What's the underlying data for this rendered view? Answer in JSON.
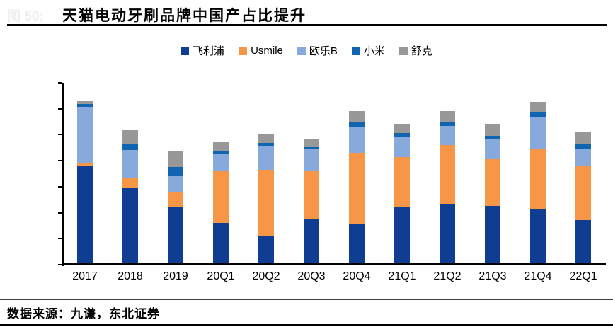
{
  "header": {
    "figure_label": "图 50:",
    "title": "天猫电动牙刷品牌中国产占比提升"
  },
  "chart_data": {
    "type": "bar",
    "stacked": true,
    "title": "天猫电动牙刷品牌中国产占比提升",
    "xlabel": "",
    "ylabel": "",
    "ylim": [
      0,
      70
    ],
    "ytick_step": 10,
    "ytick_suffix": "%",
    "grid": false,
    "legend_position": "top",
    "categories": [
      "2017",
      "2018",
      "2019",
      "20Q1",
      "20Q2",
      "20Q3",
      "20Q4",
      "21Q1",
      "21Q2",
      "21Q3",
      "21Q4",
      "22Q1"
    ],
    "series": [
      {
        "name": "飞利浦",
        "color": "#0E3D91",
        "values": [
          37.2,
          29.0,
          21.4,
          15.6,
          10.3,
          17.3,
          15.3,
          21.7,
          23.0,
          22.0,
          21.0,
          16.7
        ]
      },
      {
        "name": "Usmile",
        "color": "#F79646",
        "values": [
          1.4,
          3.9,
          6.2,
          19.8,
          25.7,
          18.0,
          27.1,
          19.1,
          22.5,
          18.1,
          23.0,
          20.5
        ]
      },
      {
        "name": "欧乐B",
        "color": "#87A9DC",
        "values": [
          21.6,
          10.8,
          6.1,
          6.6,
          9.1,
          8.5,
          10.3,
          8.1,
          7.3,
          7.6,
          12.4,
          6.6
        ]
      },
      {
        "name": "小米",
        "color": "#1164AF",
        "values": [
          1.1,
          2.4,
          3.3,
          1.1,
          1.2,
          1.0,
          1.4,
          1.3,
          1.8,
          1.3,
          1.8,
          2.1
        ]
      },
      {
        "name": "舒克",
        "color": "#989898",
        "values": [
          1.5,
          5.1,
          6.0,
          3.4,
          3.6,
          3.2,
          4.4,
          3.4,
          4.0,
          4.7,
          4.0,
          4.8
        ]
      }
    ]
  },
  "footer": {
    "source": "数据来源：九谦，东北证券"
  },
  "layout_colors": {
    "axis": "#000000",
    "title_rule": "#000000",
    "footer_rule_top": "#404040",
    "footer_rule_bottom": "#000000"
  }
}
